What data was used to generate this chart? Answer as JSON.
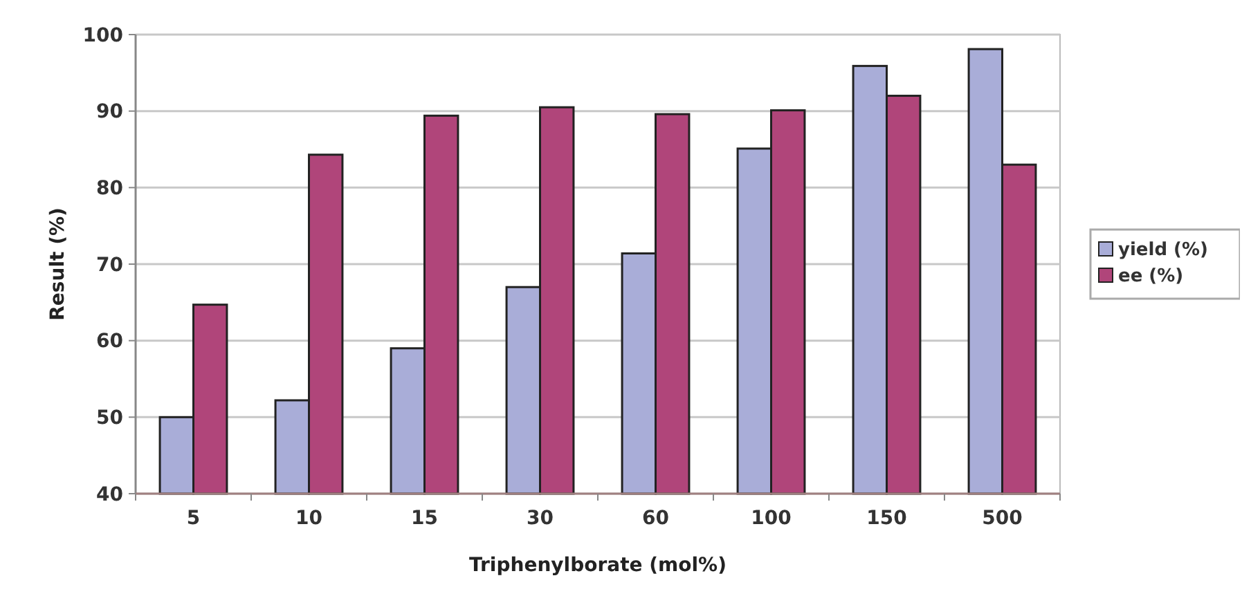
{
  "chart_data": {
    "type": "bar",
    "xlabel": "Triphenylborate (mol%)",
    "ylabel": "Result (%)",
    "categories": [
      "5",
      "10",
      "15",
      "30",
      "60",
      "100",
      "150",
      "500"
    ],
    "series": [
      {
        "name": "yield (%)",
        "color": "#a9add8",
        "values": [
          50,
          52.2,
          59,
          67,
          71.4,
          85.1,
          95.9,
          98.1
        ]
      },
      {
        "name": "ee (%)",
        "color": "#b0457a",
        "values": [
          64.7,
          84.3,
          89.4,
          90.5,
          89.6,
          90.1,
          92.0,
          83.0
        ]
      }
    ],
    "ylim": [
      40,
      100
    ],
    "yticks": [
      40,
      50,
      60,
      70,
      80,
      90,
      100
    ],
    "grid": "y",
    "legend": "right"
  }
}
